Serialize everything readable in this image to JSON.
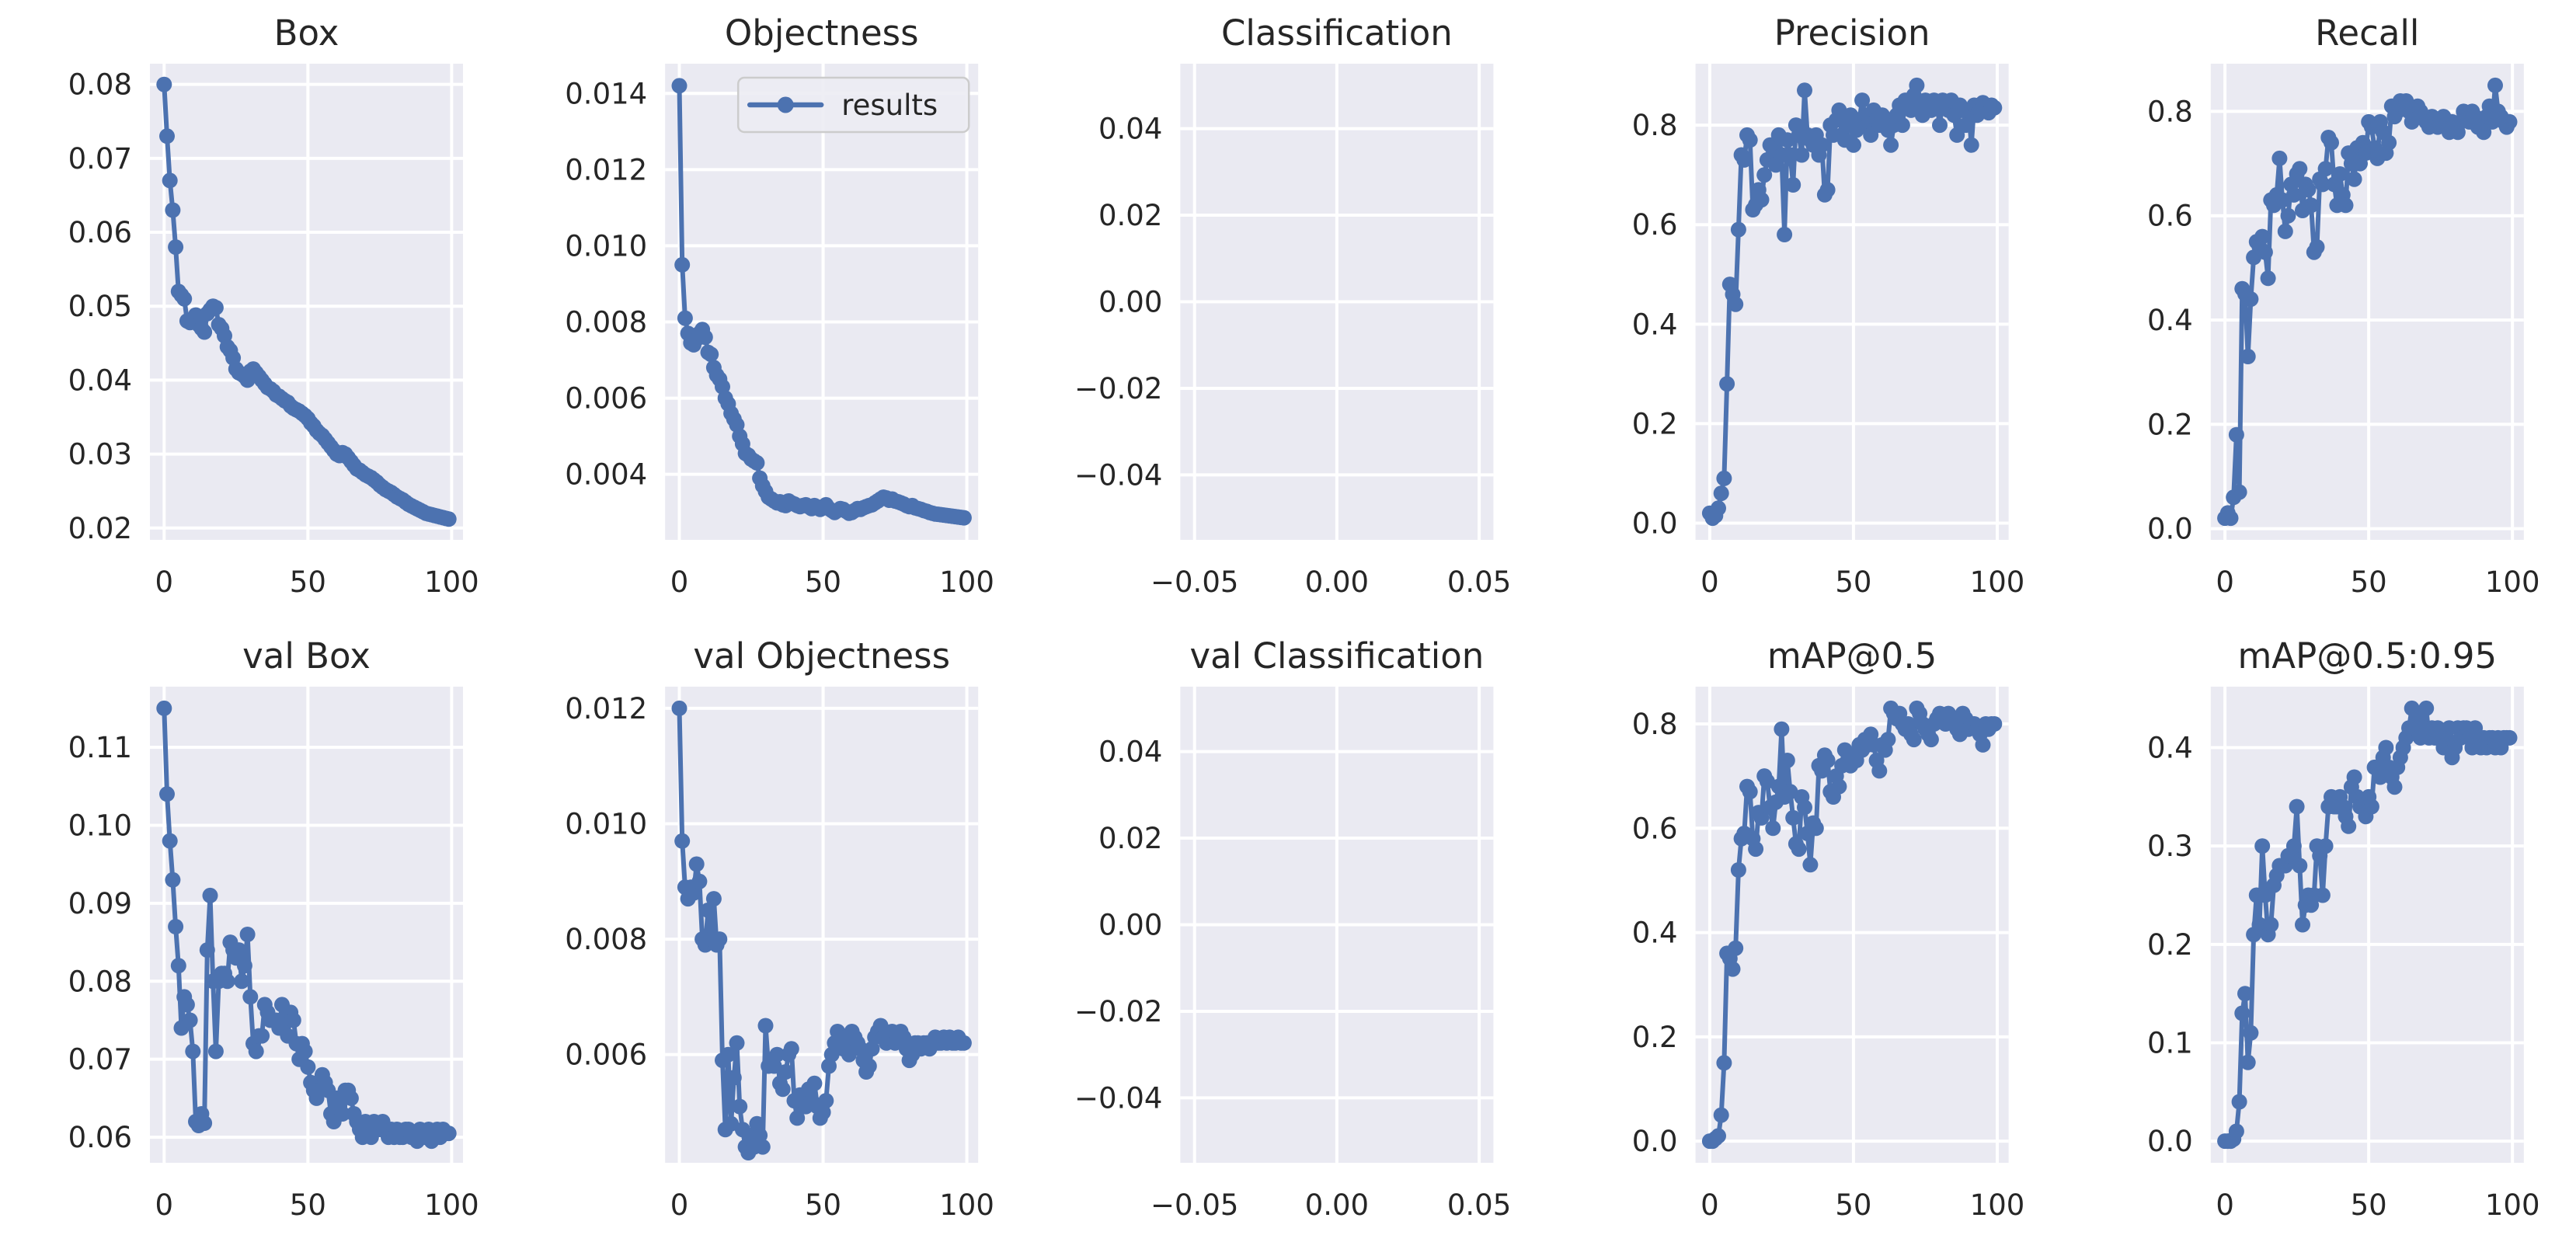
{
  "figure": {
    "kind": "training results grid (2 rows x 5 cols)",
    "background": "#ffffff"
  },
  "theme": {
    "axes_bg": "#eaeaf2",
    "grid_color": "#ffffff",
    "line_color": "#4c72b0",
    "text_color": "#262626",
    "legend_bg": "#ececf3",
    "legend_border": "#cccccc"
  },
  "legend": {
    "label": "results"
  },
  "chart_data": [
    {
      "id": "box",
      "type": "line",
      "title": "Box",
      "x_is_index": true,
      "xlim": [
        -4.95,
        103.95
      ],
      "ylim": [
        0.0184,
        0.0828
      ],
      "xticks": {
        "values": [
          0,
          50,
          100
        ],
        "labels": [
          "0",
          "50",
          "100"
        ]
      },
      "yticks": {
        "values": [
          0.02,
          0.03,
          0.04,
          0.05,
          0.06,
          0.07,
          0.08
        ],
        "labels": [
          "0.02",
          "0.03",
          "0.04",
          "0.05",
          "0.06",
          "0.07",
          "0.08"
        ]
      },
      "series_name": "results",
      "legend": false,
      "values": [
        0.08,
        0.073,
        0.067,
        0.063,
        0.058,
        0.052,
        0.0515,
        0.051,
        0.048,
        0.0478,
        0.0482,
        0.0488,
        0.0475,
        0.047,
        0.0465,
        0.049,
        0.0495,
        0.05,
        0.0498,
        0.0475,
        0.047,
        0.046,
        0.0445,
        0.044,
        0.043,
        0.0415,
        0.041,
        0.0408,
        0.0405,
        0.04,
        0.0412,
        0.0415,
        0.041,
        0.0405,
        0.04,
        0.0395,
        0.039,
        0.0388,
        0.0385,
        0.038,
        0.0378,
        0.0375,
        0.0372,
        0.037,
        0.0365,
        0.0362,
        0.036,
        0.0358,
        0.0355,
        0.0352,
        0.0348,
        0.0342,
        0.0338,
        0.0332,
        0.0328,
        0.0325,
        0.032,
        0.0315,
        0.031,
        0.0305,
        0.03,
        0.0298,
        0.0302,
        0.03,
        0.0295,
        0.029,
        0.0285,
        0.028,
        0.0278,
        0.0275,
        0.0272,
        0.027,
        0.0268,
        0.0265,
        0.0262,
        0.0258,
        0.0255,
        0.0252,
        0.025,
        0.0248,
        0.0245,
        0.0242,
        0.024,
        0.0238,
        0.0235,
        0.0232,
        0.023,
        0.0228,
        0.0226,
        0.0224,
        0.0222,
        0.022,
        0.0219,
        0.0218,
        0.0217,
        0.0216,
        0.0215,
        0.0214,
        0.0213,
        0.0212
      ]
    },
    {
      "id": "objectness",
      "type": "line",
      "title": "Objectness",
      "x_is_index": true,
      "xlim": [
        -4.95,
        103.95
      ],
      "ylim": [
        0.00228,
        0.01478
      ],
      "xticks": {
        "values": [
          0,
          50,
          100
        ],
        "labels": [
          "0",
          "50",
          "100"
        ]
      },
      "yticks": {
        "values": [
          0.004,
          0.006,
          0.008,
          0.01,
          0.012,
          0.014
        ],
        "labels": [
          "0.004",
          "0.006",
          "0.008",
          "0.010",
          "0.012",
          "0.014"
        ]
      },
      "series_name": "results",
      "legend": true,
      "values": [
        0.0142,
        0.0095,
        0.0081,
        0.0077,
        0.00745,
        0.0074,
        0.00755,
        0.0077,
        0.0078,
        0.0076,
        0.0072,
        0.00715,
        0.0068,
        0.0066,
        0.0065,
        0.0063,
        0.006,
        0.00585,
        0.0056,
        0.00545,
        0.0053,
        0.005,
        0.0048,
        0.00455,
        0.0045,
        0.0044,
        0.00435,
        0.0043,
        0.0039,
        0.0037,
        0.00355,
        0.0034,
        0.00335,
        0.0033,
        0.00325,
        0.00328,
        0.0032,
        0.00318,
        0.0033,
        0.00325,
        0.00322,
        0.00318,
        0.00315,
        0.00318,
        0.0032,
        0.00315,
        0.0031,
        0.00318,
        0.00312,
        0.00308,
        0.00315,
        0.0032,
        0.0031,
        0.00305,
        0.003,
        0.00305,
        0.0031,
        0.00308,
        0.00303,
        0.00298,
        0.003,
        0.00305,
        0.0031,
        0.00308,
        0.00312,
        0.00315,
        0.00318,
        0.0032,
        0.00325,
        0.0033,
        0.00335,
        0.0034,
        0.00338,
        0.00332,
        0.00335,
        0.0033,
        0.00328,
        0.00325,
        0.00322,
        0.00318,
        0.00315,
        0.00318,
        0.00312,
        0.0031,
        0.00308,
        0.00305,
        0.00303,
        0.003,
        0.00298,
        0.00296,
        0.00295,
        0.00294,
        0.00293,
        0.00292,
        0.00291,
        0.0029,
        0.00289,
        0.00288,
        0.00287,
        0.00286
      ]
    },
    {
      "id": "classification",
      "type": "line",
      "title": "Classification",
      "x_is_index": false,
      "xlim": [
        -0.055,
        0.055
      ],
      "ylim": [
        -0.055,
        0.055
      ],
      "xticks": {
        "values": [
          -0.05,
          0.0,
          0.05
        ],
        "labels": [
          "−0.05",
          "0.00",
          "0.05"
        ]
      },
      "yticks": {
        "values": [
          0.04,
          0.02,
          0.0,
          -0.02,
          -0.04
        ],
        "labels": [
          "0.04",
          "0.02",
          "0.00",
          "−0.02",
          "−0.04"
        ]
      },
      "series_name": "results",
      "legend": false,
      "values": null
    },
    {
      "id": "precision",
      "type": "line",
      "title": "Precision",
      "x_is_index": true,
      "xlim": [
        -4.95,
        103.95
      ],
      "ylim": [
        -0.0335,
        0.9235
      ],
      "xticks": {
        "values": [
          0,
          50,
          100
        ],
        "labels": [
          "0",
          "50",
          "100"
        ]
      },
      "yticks": {
        "values": [
          0.0,
          0.2,
          0.4,
          0.6,
          0.8
        ],
        "labels": [
          "0.0",
          "0.2",
          "0.4",
          "0.6",
          "0.8"
        ]
      },
      "series_name": "results",
      "legend": false,
      "values": [
        0.02,
        0.01,
        0.015,
        0.03,
        0.06,
        0.09,
        0.28,
        0.48,
        0.46,
        0.44,
        0.59,
        0.74,
        0.73,
        0.78,
        0.77,
        0.63,
        0.64,
        0.67,
        0.65,
        0.7,
        0.73,
        0.76,
        0.74,
        0.72,
        0.78,
        0.74,
        0.58,
        0.77,
        0.74,
        0.68,
        0.8,
        0.78,
        0.74,
        0.87,
        0.78,
        0.77,
        0.76,
        0.78,
        0.74,
        0.76,
        0.66,
        0.67,
        0.8,
        0.78,
        0.81,
        0.83,
        0.78,
        0.77,
        0.8,
        0.82,
        0.76,
        0.79,
        0.81,
        0.85,
        0.82,
        0.8,
        0.78,
        0.83,
        0.81,
        0.8,
        0.82,
        0.81,
        0.79,
        0.76,
        0.8,
        0.82,
        0.84,
        0.8,
        0.85,
        0.84,
        0.83,
        0.86,
        0.88,
        0.84,
        0.82,
        0.85,
        0.84,
        0.83,
        0.85,
        0.84,
        0.8,
        0.85,
        0.84,
        0.83,
        0.85,
        0.82,
        0.78,
        0.84,
        0.83,
        0.8,
        0.83,
        0.76,
        0.84,
        0.82,
        0.83,
        0.845,
        0.835,
        0.825,
        0.84,
        0.835
      ]
    },
    {
      "id": "recall",
      "type": "line",
      "title": "Recall",
      "x_is_index": true,
      "xlim": [
        -4.95,
        103.95
      ],
      "ylim": [
        -0.0215,
        0.8915
      ],
      "xticks": {
        "values": [
          0,
          50,
          100
        ],
        "labels": [
          "0",
          "50",
          "100"
        ]
      },
      "yticks": {
        "values": [
          0.0,
          0.2,
          0.4,
          0.6,
          0.8
        ],
        "labels": [
          "0.0",
          "0.2",
          "0.4",
          "0.6",
          "0.8"
        ]
      },
      "series_name": "results",
      "legend": false,
      "values": [
        0.02,
        0.03,
        0.02,
        0.06,
        0.18,
        0.07,
        0.46,
        0.45,
        0.33,
        0.44,
        0.52,
        0.55,
        0.54,
        0.56,
        0.53,
        0.48,
        0.63,
        0.62,
        0.64,
        0.71,
        0.63,
        0.57,
        0.6,
        0.66,
        0.64,
        0.68,
        0.69,
        0.61,
        0.66,
        0.65,
        0.62,
        0.53,
        0.54,
        0.67,
        0.66,
        0.69,
        0.75,
        0.74,
        0.66,
        0.62,
        0.68,
        0.64,
        0.62,
        0.72,
        0.7,
        0.67,
        0.73,
        0.7,
        0.74,
        0.72,
        0.78,
        0.77,
        0.73,
        0.71,
        0.78,
        0.76,
        0.72,
        0.74,
        0.81,
        0.79,
        0.8,
        0.82,
        0.81,
        0.82,
        0.8,
        0.78,
        0.79,
        0.81,
        0.8,
        0.79,
        0.78,
        0.77,
        0.79,
        0.78,
        0.77,
        0.78,
        0.79,
        0.77,
        0.76,
        0.78,
        0.77,
        0.76,
        0.78,
        0.8,
        0.79,
        0.78,
        0.8,
        0.79,
        0.77,
        0.78,
        0.76,
        0.79,
        0.81,
        0.78,
        0.85,
        0.8,
        0.79,
        0.78,
        0.77,
        0.78
      ]
    },
    {
      "id": "val-box",
      "type": "line",
      "title": "val Box",
      "x_is_index": true,
      "xlim": [
        -4.95,
        103.95
      ],
      "ylim": [
        0.05672,
        0.11778
      ],
      "xticks": {
        "values": [
          0,
          50,
          100
        ],
        "labels": [
          "0",
          "50",
          "100"
        ]
      },
      "yticks": {
        "values": [
          0.06,
          0.07,
          0.08,
          0.09,
          0.1,
          0.11
        ],
        "labels": [
          "0.06",
          "0.07",
          "0.08",
          "0.09",
          "0.10",
          "0.11"
        ]
      },
      "series_name": "results",
      "legend": false,
      "values": [
        0.115,
        0.104,
        0.098,
        0.093,
        0.087,
        0.082,
        0.074,
        0.078,
        0.077,
        0.075,
        0.071,
        0.062,
        0.0615,
        0.063,
        0.0618,
        0.084,
        0.091,
        0.08,
        0.071,
        0.08,
        0.081,
        0.081,
        0.08,
        0.085,
        0.084,
        0.083,
        0.084,
        0.08,
        0.082,
        0.086,
        0.078,
        0.072,
        0.071,
        0.073,
        0.073,
        0.077,
        0.076,
        0.075,
        0.075,
        0.075,
        0.074,
        0.077,
        0.075,
        0.073,
        0.076,
        0.075,
        0.072,
        0.07,
        0.072,
        0.071,
        0.069,
        0.067,
        0.066,
        0.065,
        0.066,
        0.068,
        0.067,
        0.066,
        0.063,
        0.062,
        0.065,
        0.064,
        0.063,
        0.066,
        0.066,
        0.065,
        0.063,
        0.062,
        0.061,
        0.06,
        0.062,
        0.061,
        0.06,
        0.062,
        0.061,
        0.061,
        0.062,
        0.061,
        0.06,
        0.061,
        0.06,
        0.061,
        0.06,
        0.06,
        0.061,
        0.061,
        0.06,
        0.06,
        0.0595,
        0.061,
        0.06,
        0.06,
        0.061,
        0.0595,
        0.06,
        0.061,
        0.06,
        0.061,
        0.0605,
        0.0605
      ]
    },
    {
      "id": "val-objectness",
      "type": "line",
      "title": "val Objectness",
      "x_is_index": true,
      "xlim": [
        -4.95,
        103.95
      ],
      "ylim": [
        0.004125,
        0.012375
      ],
      "xticks": {
        "values": [
          0,
          50,
          100
        ],
        "labels": [
          "0",
          "50",
          "100"
        ]
      },
      "yticks": {
        "values": [
          0.006,
          0.008,
          0.01,
          0.012
        ],
        "labels": [
          "0.006",
          "0.008",
          "0.010",
          "0.012"
        ]
      },
      "series_name": "results",
      "legend": false,
      "values": [
        0.012,
        0.0097,
        0.0089,
        0.0087,
        0.0089,
        0.0088,
        0.0093,
        0.009,
        0.008,
        0.0079,
        0.0085,
        0.008,
        0.0087,
        0.0079,
        0.008,
        0.0059,
        0.0047,
        0.006,
        0.0048,
        0.0056,
        0.0062,
        0.0051,
        0.0047,
        0.0044,
        0.0043,
        0.0046,
        0.0044,
        0.0048,
        0.0046,
        0.0044,
        0.0065,
        0.0058,
        0.0059,
        0.0058,
        0.006,
        0.0055,
        0.0054,
        0.0057,
        0.006,
        0.0061,
        0.0052,
        0.0049,
        0.0053,
        0.0052,
        0.0051,
        0.0054,
        0.0052,
        0.0055,
        0.0051,
        0.0049,
        0.005,
        0.0052,
        0.0058,
        0.006,
        0.0062,
        0.0064,
        0.0062,
        0.0061,
        0.0063,
        0.006,
        0.0064,
        0.0063,
        0.0062,
        0.0061,
        0.0059,
        0.0057,
        0.0058,
        0.0061,
        0.0063,
        0.0064,
        0.0065,
        0.0063,
        0.0062,
        0.0063,
        0.0064,
        0.0062,
        0.0063,
        0.0064,
        0.0063,
        0.0061,
        0.0059,
        0.006,
        0.0062,
        0.0062,
        0.0061,
        0.0062,
        0.0062,
        0.0061,
        0.0062,
        0.0063,
        0.0062,
        0.0062,
        0.0063,
        0.0062,
        0.0063,
        0.0062,
        0.0062,
        0.0063,
        0.0062,
        0.0062
      ]
    },
    {
      "id": "val-classification",
      "type": "line",
      "title": "val Classification",
      "x_is_index": false,
      "xlim": [
        -0.055,
        0.055
      ],
      "ylim": [
        -0.055,
        0.055
      ],
      "xticks": {
        "values": [
          -0.05,
          0.0,
          0.05
        ],
        "labels": [
          "−0.05",
          "0.00",
          "0.05"
        ]
      },
      "yticks": {
        "values": [
          0.04,
          0.02,
          0.0,
          -0.02,
          -0.04
        ],
        "labels": [
          "0.04",
          "0.02",
          "0.00",
          "−0.02",
          "−0.04"
        ]
      },
      "series_name": "results",
      "legend": false,
      "values": null
    },
    {
      "id": "map05",
      "type": "line",
      "title": "mAP@0.5",
      "x_is_index": true,
      "xlim": [
        -4.95,
        103.95
      ],
      "ylim": [
        -0.0415,
        0.8715
      ],
      "xticks": {
        "values": [
          0,
          50,
          100
        ],
        "labels": [
          "0",
          "50",
          "100"
        ]
      },
      "yticks": {
        "values": [
          0.0,
          0.2,
          0.4,
          0.6,
          0.8
        ],
        "labels": [
          "0.0",
          "0.2",
          "0.4",
          "0.6",
          "0.8"
        ]
      },
      "series_name": "results",
      "legend": false,
      "values": [
        0.0,
        0.0,
        0.005,
        0.01,
        0.05,
        0.15,
        0.36,
        0.35,
        0.33,
        0.37,
        0.52,
        0.58,
        0.59,
        0.68,
        0.67,
        0.58,
        0.56,
        0.63,
        0.62,
        0.7,
        0.69,
        0.64,
        0.6,
        0.65,
        0.68,
        0.79,
        0.66,
        0.73,
        0.67,
        0.62,
        0.57,
        0.56,
        0.66,
        0.64,
        0.59,
        0.53,
        0.61,
        0.6,
        0.72,
        0.71,
        0.74,
        0.73,
        0.67,
        0.66,
        0.7,
        0.68,
        0.72,
        0.75,
        0.73,
        0.72,
        0.74,
        0.73,
        0.76,
        0.75,
        0.77,
        0.76,
        0.78,
        0.76,
        0.73,
        0.71,
        0.76,
        0.75,
        0.77,
        0.83,
        0.82,
        0.81,
        0.82,
        0.8,
        0.79,
        0.8,
        0.78,
        0.77,
        0.83,
        0.82,
        0.8,
        0.79,
        0.78,
        0.77,
        0.8,
        0.81,
        0.82,
        0.81,
        0.8,
        0.82,
        0.81,
        0.8,
        0.79,
        0.78,
        0.82,
        0.81,
        0.79,
        0.8,
        0.8,
        0.79,
        0.78,
        0.76,
        0.8,
        0.79,
        0.8,
        0.8
      ]
    },
    {
      "id": "map0595",
      "type": "line",
      "title": "mAP@0.5:0.95",
      "x_is_index": true,
      "xlim": [
        -4.95,
        103.95
      ],
      "ylim": [
        -0.022,
        0.462
      ],
      "xticks": {
        "values": [
          0,
          50,
          100
        ],
        "labels": [
          "0",
          "50",
          "100"
        ]
      },
      "yticks": {
        "values": [
          0.0,
          0.1,
          0.2,
          0.3,
          0.4
        ],
        "labels": [
          "0.0",
          "0.1",
          "0.2",
          "0.3",
          "0.4"
        ]
      },
      "series_name": "results",
      "legend": false,
      "values": [
        0.0,
        0.0,
        0.0,
        0.002,
        0.01,
        0.04,
        0.13,
        0.15,
        0.08,
        0.11,
        0.21,
        0.25,
        0.22,
        0.3,
        0.25,
        0.21,
        0.22,
        0.26,
        0.27,
        0.28,
        0.28,
        0.28,
        0.29,
        0.29,
        0.3,
        0.34,
        0.28,
        0.22,
        0.24,
        0.25,
        0.24,
        0.25,
        0.3,
        0.29,
        0.25,
        0.3,
        0.34,
        0.35,
        0.34,
        0.34,
        0.35,
        0.34,
        0.33,
        0.32,
        0.36,
        0.37,
        0.35,
        0.34,
        0.34,
        0.33,
        0.35,
        0.34,
        0.38,
        0.38,
        0.37,
        0.39,
        0.4,
        0.38,
        0.37,
        0.36,
        0.38,
        0.39,
        0.4,
        0.41,
        0.42,
        0.44,
        0.42,
        0.43,
        0.41,
        0.42,
        0.44,
        0.41,
        0.42,
        0.41,
        0.42,
        0.41,
        0.4,
        0.41,
        0.42,
        0.39,
        0.4,
        0.42,
        0.41,
        0.42,
        0.42,
        0.41,
        0.4,
        0.42,
        0.41,
        0.4,
        0.41,
        0.4,
        0.41,
        0.41,
        0.4,
        0.41,
        0.4,
        0.41,
        0.41,
        0.41
      ]
    }
  ]
}
